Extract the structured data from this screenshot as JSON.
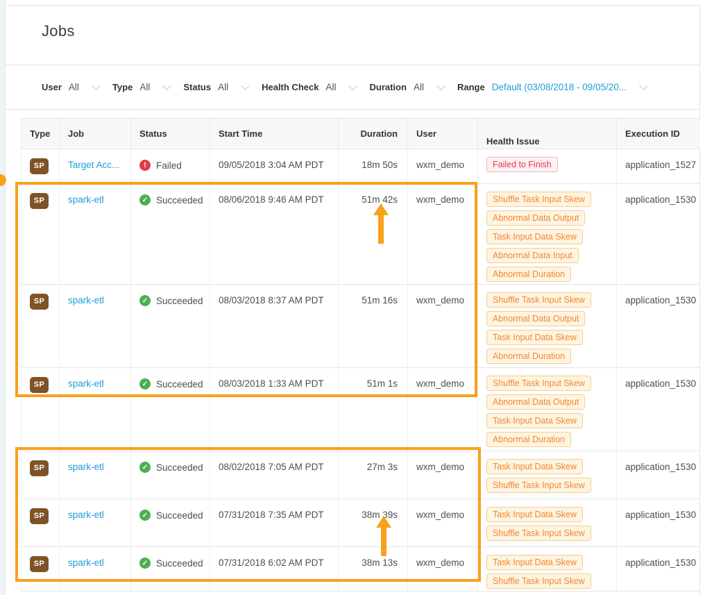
{
  "page": {
    "title": "Jobs"
  },
  "filter_bar": {
    "filters": [
      {
        "id": "user",
        "label": "User",
        "value": "All",
        "accent": false
      },
      {
        "id": "type",
        "label": "Type",
        "value": "All",
        "accent": false
      },
      {
        "id": "status",
        "label": "Status",
        "value": "All",
        "accent": false
      },
      {
        "id": "health-check",
        "label": "Health Check",
        "value": "All",
        "accent": false
      },
      {
        "id": "duration",
        "label": "Duration",
        "value": "All",
        "accent": false
      },
      {
        "id": "range",
        "label": "Range",
        "value": "Default (03/08/2018 - 09/05/20...",
        "accent": true
      }
    ]
  },
  "table": {
    "columns": [
      "Type",
      "Job",
      "Status",
      "Start Time",
      "Duration",
      "User",
      "Health Issue",
      "Execution ID"
    ],
    "rows": [
      {
        "type_badge": "SP",
        "job": "Target Acc...",
        "status": "Failed",
        "status_kind": "failed",
        "start_time": "09/05/2018 3:04 AM PDT",
        "duration": "18m 50s",
        "user": "wxm_demo",
        "health_issues": [
          "Failed to Finish"
        ],
        "issue_kind": "red",
        "execution_id": "application_1527"
      },
      {
        "type_badge": "SP",
        "job": "spark-etl",
        "status": "Succeeded",
        "status_kind": "succeeded",
        "start_time": "08/06/2018 9:46 AM PDT",
        "duration": "51m 42s",
        "user": "wxm_demo",
        "health_issues": [
          "Shuffle Task Input Skew",
          "Abnormal Data Output",
          "Task Input Data Skew",
          "Abnormal Data Input",
          "Abnormal Duration"
        ],
        "issue_kind": "orange",
        "execution_id": "application_1530"
      },
      {
        "type_badge": "SP",
        "job": "spark-etl",
        "status": "Succeeded",
        "status_kind": "succeeded",
        "start_time": "08/03/2018 8:37 AM PDT",
        "duration": "51m 16s",
        "user": "wxm_demo",
        "health_issues": [
          "Shuffle Task Input Skew",
          "Abnormal Data Output",
          "Task Input Data Skew",
          "Abnormal Duration"
        ],
        "issue_kind": "orange",
        "execution_id": "application_1530"
      },
      {
        "type_badge": "SP",
        "job": "spark-etl",
        "status": "Succeeded",
        "status_kind": "succeeded",
        "start_time": "08/03/2018 1:33 AM PDT",
        "duration": "51m 1s",
        "user": "wxm_demo",
        "health_issues": [
          "Shuffle Task Input Skew",
          "Abnormal Data Output",
          "Task Input Data Skew",
          "Abnormal Duration"
        ],
        "issue_kind": "orange",
        "execution_id": "application_1530"
      },
      {
        "type_badge": "SP",
        "job": "spark-etl",
        "status": "Succeeded",
        "status_kind": "succeeded",
        "start_time": "08/02/2018 7:05 AM PDT",
        "duration": "27m 3s",
        "user": "wxm_demo",
        "health_issues": [
          "Task Input Data Skew",
          "Shuffle Task Input Skew"
        ],
        "issue_kind": "orange",
        "execution_id": "application_1530"
      },
      {
        "type_badge": "SP",
        "job": "spark-etl",
        "status": "Succeeded",
        "status_kind": "succeeded",
        "start_time": "07/31/2018 7:35 AM PDT",
        "duration": "38m 39s",
        "user": "wxm_demo",
        "health_issues": [
          "Task Input Data Skew",
          "Shuffle Task Input Skew"
        ],
        "issue_kind": "orange",
        "execution_id": "application_1530"
      },
      {
        "type_badge": "SP",
        "job": "spark-etl",
        "status": "Succeeded",
        "status_kind": "succeeded",
        "start_time": "07/31/2018 6:02 AM PDT",
        "duration": "38m 13s",
        "user": "wxm_demo",
        "health_issues": [
          "Task Input Data Skew",
          "Shuffle Task Input Skew"
        ],
        "issue_kind": "orange",
        "execution_id": "application_1530"
      }
    ]
  },
  "icons": {
    "failed": "exclamation-circle-icon",
    "succeeded": "check-circle-icon",
    "dropdown": "chevron-down-icon"
  },
  "status_glyphs": {
    "failed": "!",
    "succeeded": "✓"
  },
  "colors": {
    "accent_orange": "#F9A11B",
    "link_blue": "#1E9CD7",
    "failed_red": "#E23B45",
    "success_green": "#4CAF50",
    "badge_orange_text": "#F5862D",
    "badge_orange_border": "#F8CD8E",
    "badge_orange_bg": "#FDF4E1",
    "badge_red_text": "#E8384F",
    "type_badge_brown": "#7F5327"
  },
  "annotations": {
    "highlight_boxes": [
      {
        "rows": "2-4"
      },
      {
        "rows": "5-7"
      }
    ],
    "arrows": [
      {
        "points_at": "51m 42s"
      },
      {
        "points_at": "38m 39s"
      }
    ]
  }
}
